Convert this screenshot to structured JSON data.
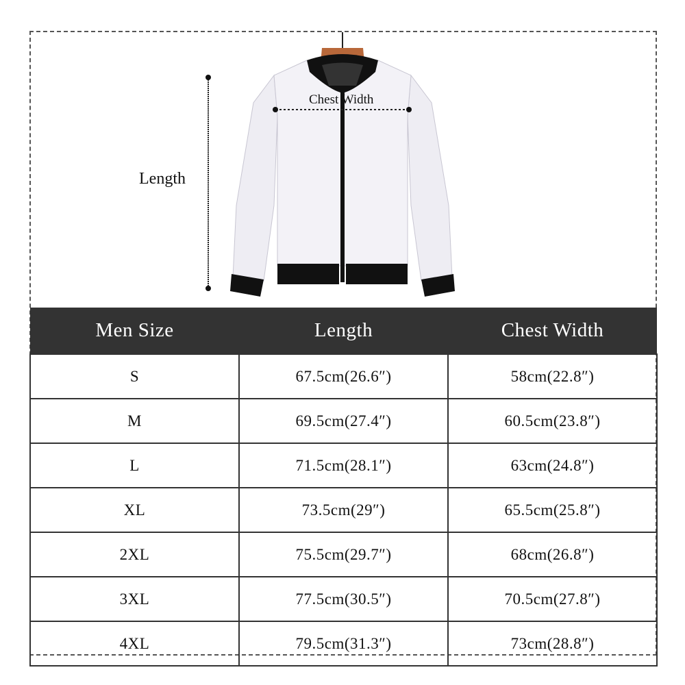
{
  "diagram": {
    "length_label": "Length",
    "chest_width_label": "Chest Width"
  },
  "table": {
    "headers": [
      "Men Size",
      "Length",
      "Chest Width"
    ],
    "rows": [
      [
        "S",
        "67.5cm(26.6″)",
        "58cm(22.8″)"
      ],
      [
        "M",
        "69.5cm(27.4″)",
        "60.5cm(23.8″)"
      ],
      [
        "L",
        "71.5cm(28.1″)",
        "63cm(24.8″)"
      ],
      [
        "XL",
        "73.5cm(29″)",
        "65.5cm(25.8″)"
      ],
      [
        "2XL",
        "75.5cm(29.7″)",
        "68cm(26.8″)"
      ],
      [
        "3XL",
        "77.5cm(30.5″)",
        "70.5cm(27.8″)"
      ],
      [
        "4XL",
        "79.5cm(31.3″)",
        "73cm(28.8″)"
      ]
    ]
  },
  "colors": {
    "header_bg": "#333333",
    "jacket_body": "#f2f1f6",
    "jacket_trim": "#111111",
    "hanger": "#b8683a"
  }
}
